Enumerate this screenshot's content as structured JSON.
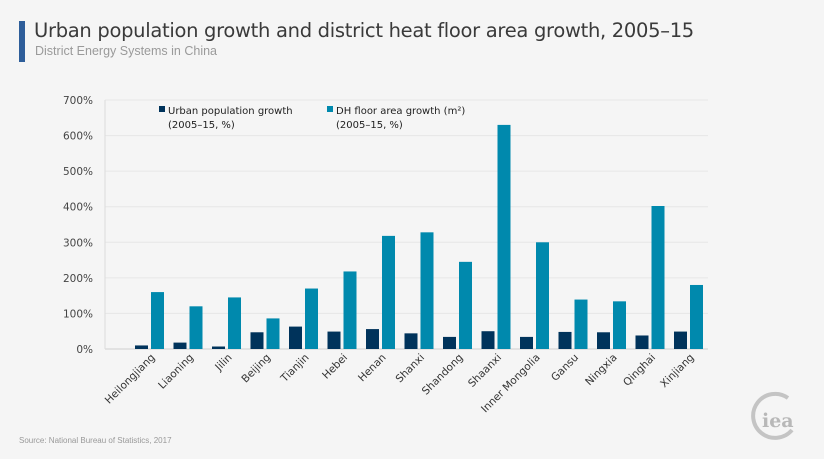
{
  "header": {
    "title": "Urban population growth and district heat floor area growth, 2005–15",
    "subtitle": "District Energy Systems in China"
  },
  "footer": {
    "source": "Source: National Bureau of Statistics, 2017",
    "logo_text": "iea"
  },
  "colors": {
    "urban": "#00335b",
    "dh": "#0089ad",
    "accent": "#2e5e9a",
    "grid": "#e6e6e6"
  },
  "chart_data": {
    "type": "bar",
    "title": "Urban population growth and district heat floor area growth, 2005–15",
    "xlabel": "",
    "ylabel": "",
    "ylim": [
      0,
      700
    ],
    "yticks": [
      0,
      100,
      200,
      300,
      400,
      500,
      600,
      700
    ],
    "ytick_suffix": "%",
    "grid": true,
    "legend_position": "top-left",
    "categories": [
      "Heilongjiang",
      "Liaoning",
      "Jilin",
      "Beijing",
      "Tianjin",
      "Hebei",
      "Henan",
      "Shanxi",
      "Shandong",
      "Shaanxi",
      "Inner Mongolia",
      "Gansu",
      "Ningxia",
      "Qinghai",
      "Xinjiang"
    ],
    "series": [
      {
        "name": "Urban population growth (2005–15, %)",
        "legend_line1": "Urban population growth",
        "legend_line2": "(2005–15, %)",
        "color": "#00335b",
        "values": [
          10,
          18,
          7,
          47,
          63,
          49,
          56,
          44,
          34,
          50,
          34,
          48,
          47,
          38,
          49
        ]
      },
      {
        "name": "DH floor area growth (m²) (2005–15, %)",
        "legend_line1": "DH floor area growth (m²)",
        "legend_line2": "(2005–15, %)",
        "color": "#0089ad",
        "values": [
          160,
          120,
          145,
          86,
          170,
          218,
          318,
          328,
          245,
          630,
          300,
          139,
          134,
          402,
          180
        ]
      }
    ]
  }
}
